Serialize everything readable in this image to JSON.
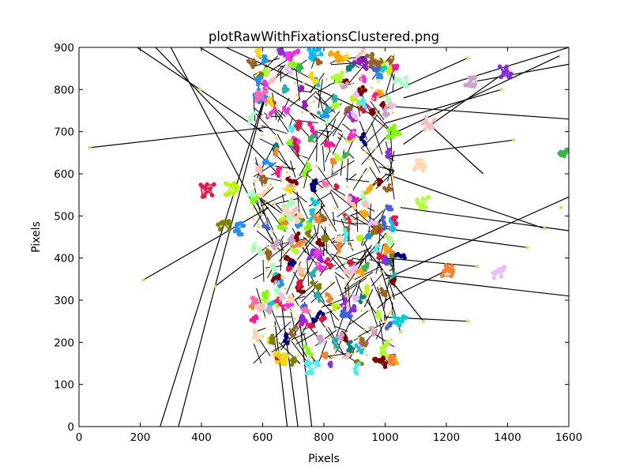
{
  "chart_data": {
    "type": "scatter",
    "title": "plotRawWithFixationsClustered.png",
    "xlabel": "Pixels",
    "ylabel": "Pixels",
    "xlim": [
      0,
      1600
    ],
    "ylim": [
      0,
      900
    ],
    "xticks": [
      0,
      200,
      400,
      600,
      800,
      1000,
      1200,
      1400,
      1600
    ],
    "yticks": [
      0,
      100,
      200,
      300,
      400,
      500,
      600,
      700,
      800,
      900
    ],
    "grid": false,
    "legend": "none",
    "colors": {
      "raw_line": "#000000",
      "raw_point": "#f0d060",
      "cluster_palette": [
        "#e6194b",
        "#3cb44b",
        "#4363d8",
        "#f58231",
        "#911eb4",
        "#46f0f0",
        "#f032e6",
        "#bcf60c",
        "#fabebe",
        "#008080",
        "#e6beff",
        "#9a6324",
        "#800000",
        "#aaffc3",
        "#808000",
        "#ffd8b1",
        "#000075",
        "#c8a2c8",
        "#ff1493",
        "#00ced1",
        "#7fff00",
        "#1e90ff",
        "#ffa500",
        "#dc143c",
        "#8a2be2",
        "#20b2aa",
        "#adff2f",
        "#ff69b4",
        "#ffd700",
        "#00bfff"
      ]
    },
    "main_cloud": {
      "x_range": [
        570,
        1030
      ],
      "y_range": [
        150,
        880
      ],
      "density": "very high"
    },
    "fixation_clusters": [
      {
        "x": 420,
        "y": 560
      },
      {
        "x": 500,
        "y": 565
      },
      {
        "x": 470,
        "y": 480
      },
      {
        "x": 520,
        "y": 470
      },
      {
        "x": 660,
        "y": 160
      },
      {
        "x": 760,
        "y": 140
      },
      {
        "x": 980,
        "y": 150
      },
      {
        "x": 1050,
        "y": 250
      },
      {
        "x": 1120,
        "y": 530
      },
      {
        "x": 1200,
        "y": 370
      },
      {
        "x": 1375,
        "y": 365
      },
      {
        "x": 1280,
        "y": 820
      },
      {
        "x": 1395,
        "y": 840
      },
      {
        "x": 1590,
        "y": 650
      },
      {
        "x": 1140,
        "y": 720
      },
      {
        "x": 1110,
        "y": 620
      },
      {
        "x": 840,
        "y": 880
      },
      {
        "x": 770,
        "y": 885
      },
      {
        "x": 700,
        "y": 885
      },
      {
        "x": 1050,
        "y": 820
      },
      {
        "x": 1030,
        "y": 700
      },
      {
        "x": 600,
        "y": 780
      },
      {
        "x": 920,
        "y": 860
      },
      {
        "x": 960,
        "y": 870
      }
    ],
    "outlier_points": [
      {
        "x": 35,
        "y": 662
      },
      {
        "x": 210,
        "y": 348
      },
      {
        "x": 445,
        "y": 333
      },
      {
        "x": 395,
        "y": 800
      },
      {
        "x": 1270,
        "y": 250
      },
      {
        "x": 1420,
        "y": 680
      },
      {
        "x": 1465,
        "y": 425
      },
      {
        "x": 1520,
        "y": 470
      },
      {
        "x": 1575,
        "y": 520
      },
      {
        "x": 1270,
        "y": 875
      },
      {
        "x": 1380,
        "y": 800
      },
      {
        "x": 1050,
        "y": 225
      },
      {
        "x": 1125,
        "y": 250
      },
      {
        "x": 1300,
        "y": 380
      }
    ],
    "saccade_lines": [
      [
        [
          35,
          662
        ],
        [
          610,
          710
        ]
      ],
      [
        [
          210,
          348
        ],
        [
          620,
          520
        ]
      ],
      [
        [
          445,
          333
        ],
        [
          620,
          430
        ]
      ],
      [
        [
          1270,
          250
        ],
        [
          1000,
          260
        ]
      ],
      [
        [
          1420,
          680
        ],
        [
          1000,
          640
        ]
      ],
      [
        [
          1465,
          425
        ],
        [
          1000,
          470
        ]
      ],
      [
        [
          1520,
          470
        ],
        [
          1000,
          600
        ]
      ],
      [
        [
          1600,
          545
        ],
        [
          1000,
          350
        ]
      ],
      [
        [
          1600,
          310
        ],
        [
          1000,
          360
        ]
      ],
      [
        [
          1600,
          730
        ],
        [
          1020,
          760
        ]
      ],
      [
        [
          1600,
          900
        ],
        [
          1060,
          780
        ]
      ],
      [
        [
          1600,
          860
        ],
        [
          1300,
          820
        ]
      ],
      [
        [
          1570,
          880
        ],
        [
          1040,
          700
        ]
      ],
      [
        [
          1600,
          465
        ],
        [
          1050,
          520
        ]
      ],
      [
        [
          1050,
          225
        ],
        [
          980,
          390
        ]
      ],
      [
        [
          1125,
          250
        ],
        [
          940,
          420
        ]
      ],
      [
        [
          265,
          0
        ],
        [
          600,
          770
        ]
      ],
      [
        [
          325,
          0
        ],
        [
          620,
          820
        ]
      ],
      [
        [
          190,
          900
        ],
        [
          600,
          700
        ]
      ],
      [
        [
          250,
          900
        ],
        [
          650,
          600
        ]
      ],
      [
        [
          300,
          900
        ],
        [
          640,
          430
        ]
      ],
      [
        [
          395,
          900
        ],
        [
          860,
          700
        ]
      ],
      [
        [
          480,
          900
        ],
        [
          960,
          740
        ]
      ],
      [
        [
          680,
          0
        ],
        [
          640,
          250
        ]
      ],
      [
        [
          715,
          0
        ],
        [
          660,
          300
        ]
      ],
      [
        [
          760,
          0
        ],
        [
          720,
          260
        ]
      ],
      [
        [
          1270,
          875
        ],
        [
          980,
          780
        ]
      ],
      [
        [
          1380,
          800
        ],
        [
          1000,
          720
        ]
      ],
      [
        [
          1300,
          380
        ],
        [
          1000,
          400
        ]
      ],
      [
        [
          1390,
          840
        ],
        [
          1060,
          670
        ]
      ],
      [
        [
          1140,
          720
        ],
        [
          1320,
          600
        ]
      ],
      [
        [
          1200,
          370
        ],
        [
          1000,
          300
        ]
      ]
    ]
  }
}
